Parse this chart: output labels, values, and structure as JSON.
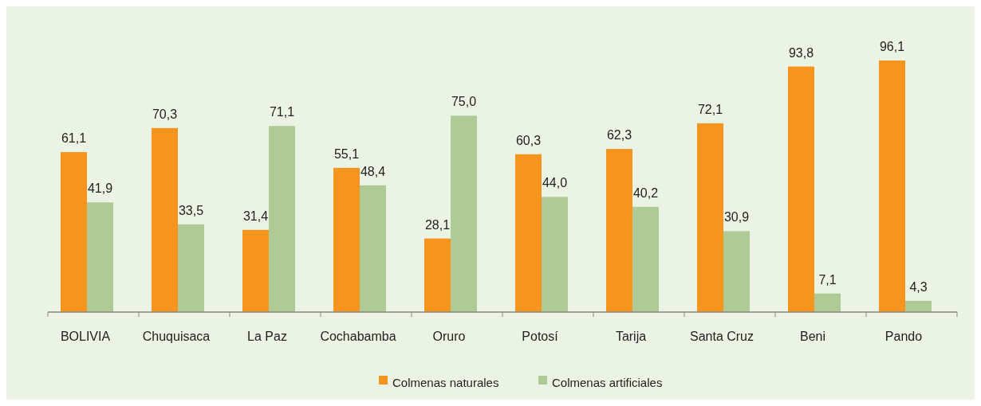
{
  "chart_data": {
    "type": "bar",
    "categories": [
      "BOLIVIA",
      "Chuquisaca",
      "La Paz",
      "Cochabamba",
      "Oruro",
      "Potosí",
      "Tarija",
      "Santa Cruz",
      "Beni",
      "Pando"
    ],
    "series": [
      {
        "name": "Colmenas naturales",
        "color": "#f7941d",
        "values": [
          61.1,
          70.3,
          31.4,
          55.1,
          28.1,
          60.3,
          62.3,
          72.1,
          93.8,
          96.1
        ],
        "value_labels": [
          "61,1",
          "70,3",
          "31,4",
          "55,1",
          "28,1",
          "60,3",
          "62,3",
          "72,1",
          "93,8",
          "96,1"
        ]
      },
      {
        "name": "Colmenas artificiales",
        "color": "#aecb96",
        "values": [
          41.9,
          33.5,
          71.1,
          48.4,
          75.0,
          44.0,
          40.2,
          30.9,
          7.1,
          4.3
        ],
        "value_labels": [
          "41,9",
          "33,5",
          "71,1",
          "48,4",
          "75,0",
          "44,0",
          "40,2",
          "30,9",
          "7,1",
          "4,3"
        ]
      }
    ],
    "legend": "bottom",
    "grid": false
  }
}
